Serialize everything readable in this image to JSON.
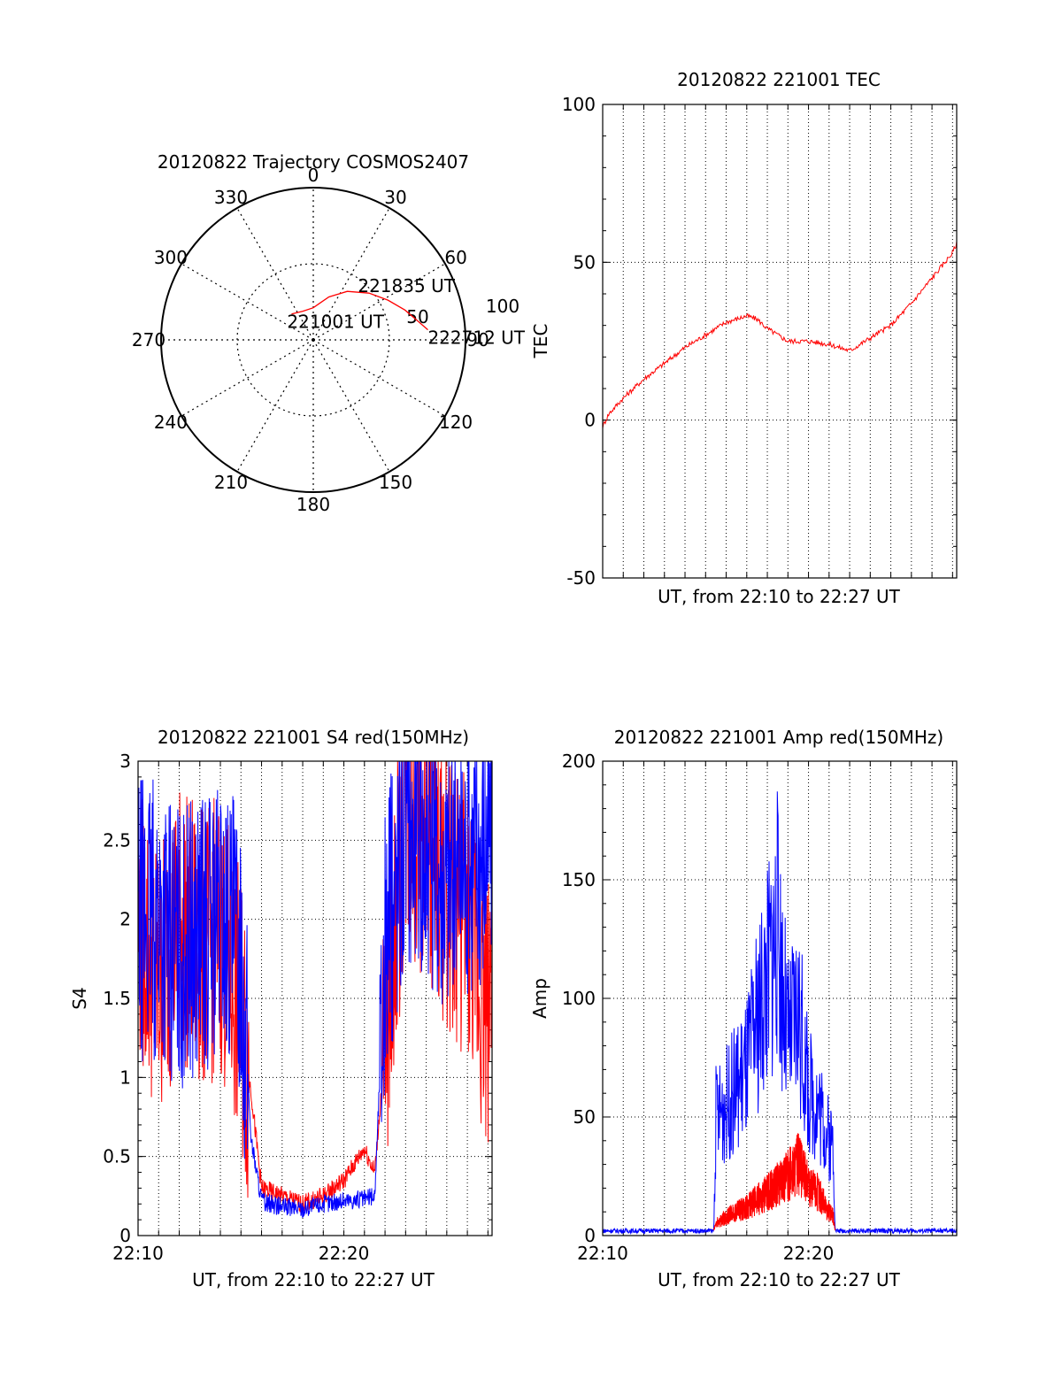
{
  "chart_data": [
    {
      "type": "polar",
      "title": "20120822 Trajectory COSMOS2407",
      "azimuth_labels": [
        "0",
        "30",
        "60",
        "90",
        "120",
        "150",
        "180",
        "210",
        "240",
        "270",
        "300",
        "330"
      ],
      "radial_labels": [
        "50",
        "100"
      ],
      "trajectory": {
        "color": "#ff0000",
        "points_az_el": [
          [
            -40,
            70
          ],
          [
            -20,
            72
          ],
          [
            0,
            71
          ],
          [
            10,
            68
          ],
          [
            20,
            63
          ],
          [
            35,
            55
          ],
          [
            50,
            47
          ],
          [
            62,
            40
          ],
          [
            72,
            33
          ],
          [
            80,
            27
          ],
          [
            85,
            22
          ]
        ],
        "labels": [
          {
            "text": "221001 UT",
            "az": -40,
            "el": 70
          },
          {
            "text": "221835 UT",
            "az": 35,
            "el": 55
          },
          {
            "text": "222712 UT",
            "az": 85,
            "el": 22
          }
        ]
      }
    },
    {
      "type": "line",
      "title": "20120822 221001 TEC",
      "xlabel": "UT, from 22:10 to 22:27 UT",
      "ylabel": "TEC",
      "ylim": [
        -50,
        100
      ],
      "yticks": [
        "-50",
        "0",
        "50",
        "100"
      ],
      "xlim_minutes": [
        0,
        17.2
      ],
      "grid": true,
      "series": [
        {
          "color": "#ff0000",
          "x": [
            0,
            0.3,
            1,
            2,
            3,
            4,
            5,
            6,
            7,
            7.5,
            8,
            9,
            10,
            11,
            12,
            13,
            14,
            15,
            16,
            17,
            17.2
          ],
          "y": [
            -2,
            2,
            7,
            13,
            18,
            23,
            27,
            31,
            33,
            32,
            29,
            25,
            25,
            24,
            22,
            26,
            30,
            37,
            45,
            53,
            56
          ]
        }
      ]
    },
    {
      "type": "line",
      "title": "20120822 221001 S4 red(150MHz)",
      "xlabel": "UT, from 22:10 to 22:27 UT",
      "ylabel": "S4",
      "ylim": [
        0,
        3
      ],
      "yticks": [
        "0",
        "0.5",
        "1",
        "1.5",
        "2",
        "2.5",
        "3"
      ],
      "xticks": [
        "22:10",
        "22:20"
      ],
      "xlim_minutes": [
        0,
        17.2
      ],
      "grid": true,
      "series": [
        {
          "name": "",
          "color": "#ff0000",
          "x": [
            0,
            1,
            2,
            3,
            4,
            5,
            5.5,
            6,
            7,
            8,
            9,
            10,
            10.5,
            11,
            11.5,
            12,
            13,
            14,
            15,
            16,
            17,
            17.2
          ],
          "y": [
            2.0,
            1.6,
            2.0,
            1.8,
            1.9,
            1.4,
            0.9,
            0.3,
            0.25,
            0.2,
            0.25,
            0.35,
            0.45,
            0.55,
            0.4,
            1.2,
            2.7,
            2.5,
            2.2,
            2.0,
            1.4,
            1.9
          ]
        },
        {
          "name": "",
          "color": "#0000ff",
          "x": [
            0,
            1,
            2,
            3,
            4,
            5,
            5.5,
            6,
            7,
            8,
            9,
            10,
            11,
            11.5,
            12,
            13,
            14,
            15,
            16,
            17,
            17.2
          ],
          "y": [
            2.0,
            2.0,
            1.8,
            1.9,
            2.0,
            1.8,
            0.6,
            0.22,
            0.18,
            0.17,
            0.2,
            0.22,
            0.23,
            0.25,
            1.8,
            2.6,
            2.5,
            2.3,
            2.4,
            2.5,
            2.6
          ]
        }
      ]
    },
    {
      "type": "line",
      "title": "20120822 221001 Amp red(150MHz)",
      "xlabel": "UT, from 22:10 to 22:27 UT",
      "ylabel": "Amp",
      "ylim": [
        0,
        200
      ],
      "yticks": [
        "0",
        "50",
        "100",
        "150",
        "200"
      ],
      "xticks": [
        "22:10",
        "22:20"
      ],
      "xlim_minutes": [
        0,
        17.2
      ],
      "grid": true,
      "series": [
        {
          "name": "",
          "color": "#0000ff",
          "x": [
            0,
            2,
            4,
            5.4,
            5.5,
            6,
            7,
            8,
            8.5,
            9,
            9.5,
            10,
            10.5,
            11,
            11.2,
            11.3,
            12,
            14,
            16,
            17.2
          ],
          "y": [
            2,
            2,
            2,
            2,
            50,
            55,
            70,
            110,
            130,
            80,
            95,
            60,
            55,
            40,
            40,
            2,
            2,
            2,
            2,
            2
          ]
        },
        {
          "name": "",
          "color": "#ff0000",
          "x": [
            5.4,
            5.5,
            6,
            7,
            8,
            9,
            9.5,
            10,
            10.5,
            11,
            11.2,
            11.3
          ],
          "y": [
            2,
            5,
            8,
            12,
            18,
            25,
            30,
            22,
            18,
            10,
            8,
            2
          ]
        }
      ]
    }
  ]
}
